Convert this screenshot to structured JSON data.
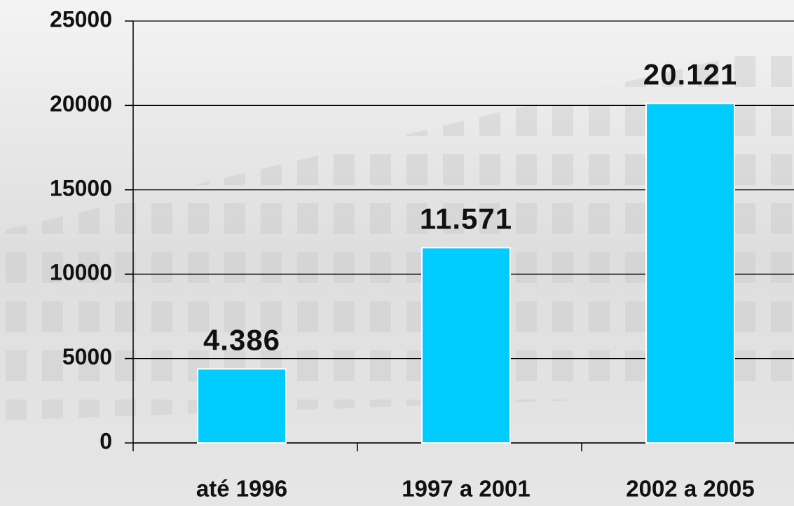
{
  "chart_data": {
    "type": "bar",
    "categories": [
      "até 1996",
      "1997 a 2001",
      "2002 a 2005"
    ],
    "values": [
      4386,
      11571,
      20121
    ],
    "value_labels": [
      "4.386",
      "11.571",
      "20.121"
    ],
    "color": "#00ccff",
    "ylim": [
      0,
      25000
    ],
    "yticks": [
      0,
      5000,
      10000,
      15000,
      20000,
      25000
    ],
    "grid": true
  }
}
